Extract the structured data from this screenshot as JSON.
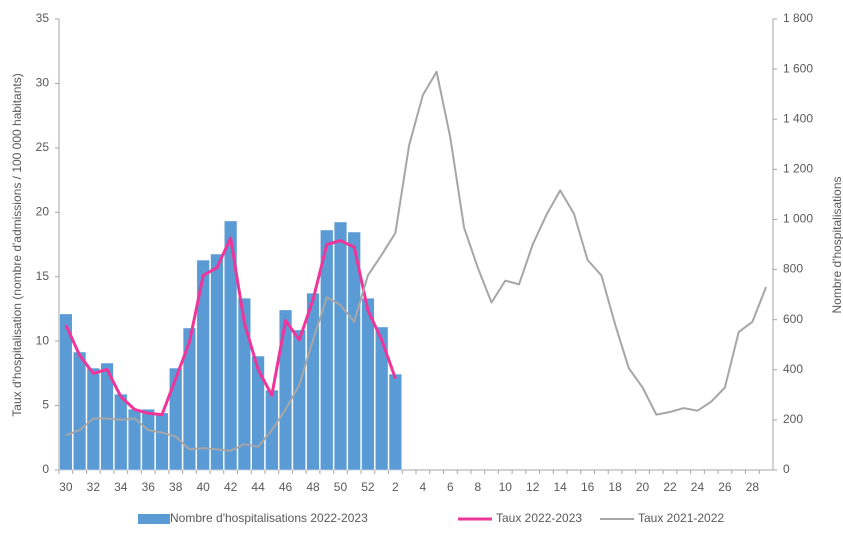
{
  "chart_data": {
    "type": "bar_line_dual",
    "y_label": "Taux d'hospitalisation (nombre d'admissions / 100 000 habitants)",
    "y2_label": "Nombre d'hospitalisations",
    "categories": [
      "30",
      null,
      "32",
      null,
      "34",
      null,
      "36",
      null,
      "38",
      null,
      "40",
      null,
      "42",
      null,
      "44",
      null,
      "46",
      null,
      "48",
      null,
      "50",
      null,
      "52",
      null,
      "2",
      null,
      "4",
      null,
      "6",
      null,
      "8",
      null,
      "10",
      null,
      "12",
      null,
      "14",
      null,
      "16",
      null,
      "18",
      null,
      "20",
      null,
      "22",
      null,
      "24",
      null,
      "26",
      null,
      "28",
      null
    ],
    "ylim": [
      0,
      35
    ],
    "yticks": [
      0,
      5,
      10,
      15,
      20,
      25,
      30,
      35
    ],
    "y2lim": [
      0,
      1800
    ],
    "y2ticks": [
      0,
      200,
      400,
      600,
      800,
      {
        "value": 1000,
        "label": "1 000"
      },
      {
        "value": 1200,
        "label": "1 200"
      },
      {
        "value": 1400,
        "label": "1 400"
      },
      {
        "value": 1600,
        "label": "1 600"
      },
      {
        "value": 1800,
        "label": "1 800"
      }
    ],
    "series": [
      {
        "name": "Nombre d'hospitalisations 2022-2023",
        "type": "bar",
        "axis": "y2",
        "color": "#5b9bd5",
        "values": [
          623,
          471,
          407,
          427,
          303,
          243,
          243,
          228,
          407,
          567,
          838,
          862,
          994,
          686,
          455,
          319,
          639,
          559,
          706,
          958,
          990,
          950,
          686,
          571,
          383,
          null,
          null,
          null,
          null,
          null,
          null,
          null,
          null,
          null,
          null,
          null,
          null,
          null,
          null,
          null,
          null,
          null,
          null,
          null,
          null,
          null,
          null,
          null,
          null,
          null,
          null,
          null
        ]
      },
      {
        "name": "Taux 2022-2023",
        "type": "line",
        "color": "#f0359a",
        "values": [
          11.25,
          8.9,
          7.5,
          7.8,
          5.7,
          4.7,
          4.4,
          4.3,
          7.1,
          9.9,
          15.1,
          15.7,
          18.0,
          11.4,
          7.8,
          5.8,
          11.6,
          10.1,
          13.2,
          17.5,
          17.8,
          17.3,
          12.4,
          10.1,
          7.1,
          null,
          null,
          null,
          null,
          null,
          null,
          null,
          null,
          null,
          null,
          null,
          null,
          null,
          null,
          null,
          null,
          null,
          null,
          null,
          null,
          null,
          null,
          null,
          null,
          null,
          null,
          null
        ]
      },
      {
        "name": "Taux 2021-2022",
        "type": "line",
        "color": "#a6a6a6",
        "values": [
          2.7,
          3.1,
          4.0,
          4.0,
          3.9,
          4.0,
          3.1,
          2.9,
          2.6,
          1.6,
          1.7,
          1.6,
          1.5,
          2.0,
          1.8,
          3.1,
          4.7,
          6.6,
          10.1,
          13.4,
          12.8,
          11.5,
          15.1,
          16.7,
          18.4,
          25.2,
          29.1,
          30.9,
          25.8,
          18.8,
          15.7,
          13.0,
          14.7,
          14.4,
          17.5,
          19.8,
          21.7,
          19.9,
          16.3,
          15.1,
          11.3,
          7.9,
          6.4,
          4.3,
          4.5,
          4.8,
          4.6,
          5.3,
          6.4,
          10.7,
          11.5,
          14.2
        ]
      }
    ]
  }
}
